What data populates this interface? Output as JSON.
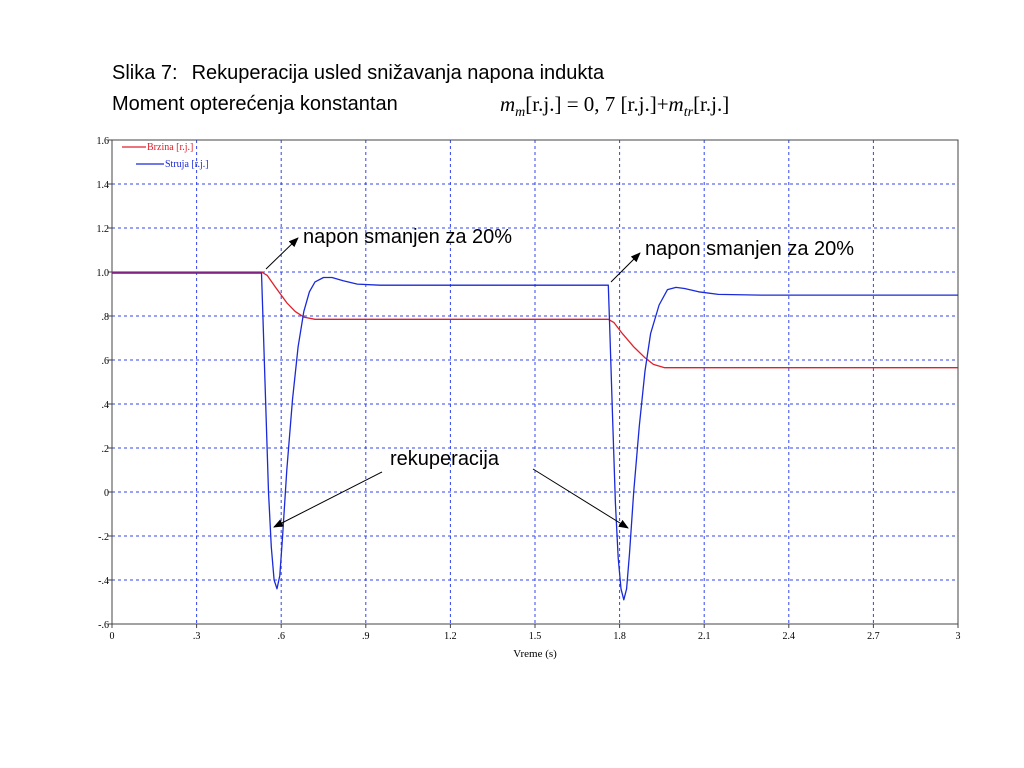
{
  "title": {
    "line1_label": "Slika 7:",
    "line1_text": "Rekuperacija usled snižavanja napona indukta",
    "line2_text": "Moment opterećenja konstantan",
    "formula": {
      "m": "m",
      "m_sub": "m",
      "unit1": "[r.j.]",
      "eq": "= 0, 7",
      "unit2": "[r.j.]",
      "plus": "+",
      "mtr": "m",
      "mtr_sub": "tr",
      "unit3": "[r.j.]"
    }
  },
  "chart_data": {
    "type": "line",
    "xlabel": "Vreme (s)",
    "ylabel": "",
    "xlim": [
      0,
      3
    ],
    "ylim": [
      -0.6,
      1.6
    ],
    "x_ticks": [
      {
        "v": 0,
        "label": "0"
      },
      {
        "v": 0.3,
        "label": ".3"
      },
      {
        "v": 0.6,
        "label": ".6"
      },
      {
        "v": 0.9,
        "label": ".9"
      },
      {
        "v": 1.2,
        "label": "1.2"
      },
      {
        "v": 1.5,
        "label": "1.5"
      },
      {
        "v": 1.8,
        "label": "1.8"
      },
      {
        "v": 2.1,
        "label": "2.1"
      },
      {
        "v": 2.4,
        "label": "2.4"
      },
      {
        "v": 2.7,
        "label": "2.7"
      },
      {
        "v": 3,
        "label": "3"
      }
    ],
    "y_ticks": [
      {
        "v": 1.6,
        "label": "1.6"
      },
      {
        "v": 1.4,
        "label": "1.4"
      },
      {
        "v": 1.2,
        "label": "1.2"
      },
      {
        "v": 1.0,
        "label": "1.0"
      },
      {
        "v": 0.8,
        "label": ".8"
      },
      {
        "v": 0.6,
        "label": ".6"
      },
      {
        "v": 0.4,
        "label": ".4"
      },
      {
        "v": 0.2,
        "label": ".2"
      },
      {
        "v": 0,
        "label": "0"
      },
      {
        "v": -0.2,
        "label": "-.2"
      },
      {
        "v": -0.4,
        "label": "-.4"
      },
      {
        "v": -0.6,
        "label": "-.6"
      }
    ],
    "grid": true,
    "legend_position": "top-left",
    "series": [
      {
        "name": "Brzina [r.j.]",
        "color": "#e0202a",
        "points": [
          [
            0,
            1.0
          ],
          [
            0.53,
            1.0
          ],
          [
            0.55,
            0.985
          ],
          [
            0.58,
            0.93
          ],
          [
            0.62,
            0.86
          ],
          [
            0.65,
            0.82
          ],
          [
            0.68,
            0.795
          ],
          [
            0.72,
            0.785
          ],
          [
            0.8,
            0.785
          ],
          [
            1.76,
            0.785
          ],
          [
            1.78,
            0.77
          ],
          [
            1.81,
            0.72
          ],
          [
            1.85,
            0.66
          ],
          [
            1.89,
            0.61
          ],
          [
            1.92,
            0.58
          ],
          [
            1.96,
            0.565
          ],
          [
            2.05,
            0.565
          ],
          [
            3.0,
            0.565
          ]
        ]
      },
      {
        "name": "Struja [r.j.]",
        "color": "#1a2ad8",
        "points": [
          [
            0,
            0.995
          ],
          [
            0.53,
            0.995
          ],
          [
            0.535,
            0.8
          ],
          [
            0.545,
            0.4
          ],
          [
            0.555,
            0.0
          ],
          [
            0.565,
            -0.25
          ],
          [
            0.575,
            -0.4
          ],
          [
            0.585,
            -0.44
          ],
          [
            0.595,
            -0.38
          ],
          [
            0.605,
            -0.2
          ],
          [
            0.62,
            0.1
          ],
          [
            0.64,
            0.42
          ],
          [
            0.66,
            0.66
          ],
          [
            0.68,
            0.82
          ],
          [
            0.7,
            0.91
          ],
          [
            0.72,
            0.955
          ],
          [
            0.75,
            0.975
          ],
          [
            0.78,
            0.975
          ],
          [
            0.82,
            0.96
          ],
          [
            0.87,
            0.945
          ],
          [
            0.95,
            0.94
          ],
          [
            1.2,
            0.94
          ],
          [
            1.76,
            0.94
          ],
          [
            1.765,
            0.75
          ],
          [
            1.775,
            0.35
          ],
          [
            1.785,
            -0.05
          ],
          [
            1.795,
            -0.3
          ],
          [
            1.805,
            -0.44
          ],
          [
            1.815,
            -0.49
          ],
          [
            1.825,
            -0.44
          ],
          [
            1.835,
            -0.28
          ],
          [
            1.85,
            0.0
          ],
          [
            1.87,
            0.3
          ],
          [
            1.89,
            0.55
          ],
          [
            1.91,
            0.72
          ],
          [
            1.94,
            0.85
          ],
          [
            1.97,
            0.92
          ],
          [
            2.0,
            0.93
          ],
          [
            2.03,
            0.925
          ],
          [
            2.08,
            0.91
          ],
          [
            2.15,
            0.898
          ],
          [
            2.3,
            0.895
          ],
          [
            3.0,
            0.895
          ]
        ]
      }
    ],
    "annotations": [
      {
        "text": "napon smanjen za 20%",
        "id": "a1"
      },
      {
        "text": "napon smanjen za 20%",
        "id": "a2"
      },
      {
        "text": "rekuperacija",
        "id": "a3"
      }
    ]
  }
}
